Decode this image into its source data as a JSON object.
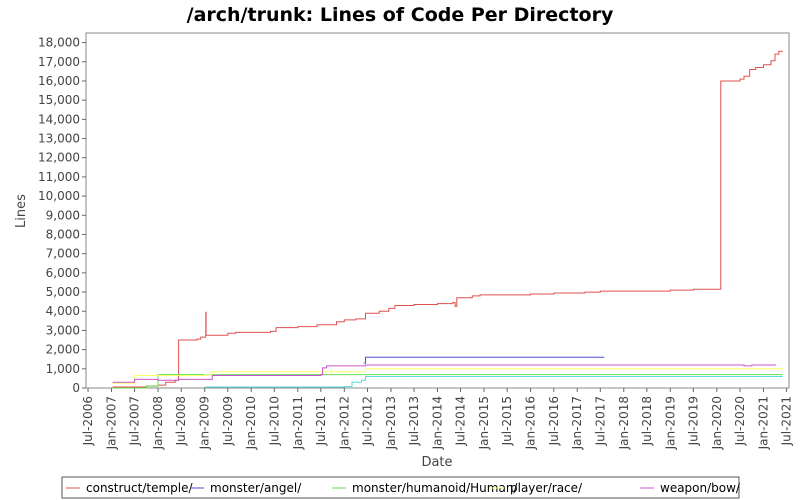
{
  "chart_data": {
    "type": "line",
    "title": "/arch/trunk: Lines of Code Per Directory",
    "xlabel": "Date",
    "ylabel": "Lines",
    "ylim": [
      0,
      18500
    ],
    "xlim": [
      "2006-06-15",
      "2021-07-20"
    ],
    "yticks": [
      0,
      1000,
      2000,
      3000,
      4000,
      5000,
      6000,
      7000,
      8000,
      9000,
      10000,
      11000,
      12000,
      13000,
      14000,
      15000,
      16000,
      17000,
      18000
    ],
    "ytick_labels": [
      "0",
      "1,000",
      "2,000",
      "3,000",
      "4,000",
      "5,000",
      "6,000",
      "7,000",
      "8,000",
      "9,000",
      "10,000",
      "11,000",
      "12,000",
      "13,000",
      "14,000",
      "15,000",
      "16,000",
      "17,000",
      "18,000"
    ],
    "xticks": [
      "2006-07-01",
      "2007-01-01",
      "2007-07-01",
      "2008-01-01",
      "2008-07-01",
      "2009-01-01",
      "2009-07-01",
      "2010-01-01",
      "2010-07-01",
      "2011-01-01",
      "2011-07-01",
      "2012-01-01",
      "2012-07-01",
      "2013-01-01",
      "2013-07-01",
      "2014-01-01",
      "2014-07-01",
      "2015-01-01",
      "2015-07-01",
      "2016-01-01",
      "2016-07-01",
      "2017-01-01",
      "2017-07-01",
      "2018-01-01",
      "2018-07-01",
      "2019-01-01",
      "2019-07-01",
      "2020-01-01",
      "2020-07-01",
      "2021-01-01",
      "2021-07-01"
    ],
    "xtick_labels": [
      "Jul-2006",
      "Jan-2007",
      "Jul-2007",
      "Jan-2008",
      "Jul-2008",
      "Jan-2009",
      "Jul-2009",
      "Jan-2010",
      "Jul-2010",
      "Jan-2011",
      "Jul-2011",
      "Jan-2012",
      "Jul-2012",
      "Jan-2013",
      "Jul-2013",
      "Jan-2014",
      "Jul-2014",
      "Jan-2015",
      "Jul-2015",
      "Jan-2016",
      "Jul-2016",
      "Jan-2017",
      "Jul-2017",
      "Jan-2018",
      "Jul-2018",
      "Jan-2019",
      "Jul-2019",
      "Jan-2020",
      "Jul-2020",
      "Jan-2021",
      "Jul-2021"
    ],
    "grid": false,
    "legend_position": "bottom",
    "series": [
      {
        "name": "construct/temple/",
        "color": "#e05050",
        "points": [
          [
            "2007-01-10",
            50
          ],
          [
            "2007-10-01",
            100
          ],
          [
            "2008-01-01",
            150
          ],
          [
            "2008-03-01",
            300
          ],
          [
            "2008-05-15",
            400
          ],
          [
            "2008-06-10",
            2500
          ],
          [
            "2008-11-01",
            2550
          ],
          [
            "2008-12-01",
            2650
          ],
          [
            "2009-01-08",
            2750
          ],
          [
            "2009-01-10",
            3950
          ],
          [
            "2009-01-12",
            2750
          ],
          [
            "2009-07-01",
            2850
          ],
          [
            "2009-09-01",
            2900
          ],
          [
            "2010-06-01",
            2950
          ],
          [
            "2010-07-15",
            3150
          ],
          [
            "2011-01-01",
            3200
          ],
          [
            "2011-06-01",
            3300
          ],
          [
            "2011-11-01",
            3450
          ],
          [
            "2012-01-01",
            3550
          ],
          [
            "2012-04-01",
            3600
          ],
          [
            "2012-06-15",
            3900
          ],
          [
            "2012-10-01",
            4000
          ],
          [
            "2012-12-15",
            4150
          ],
          [
            "2013-02-01",
            4300
          ],
          [
            "2013-07-01",
            4350
          ],
          [
            "2014-01-01",
            4400
          ],
          [
            "2014-05-01",
            4450
          ],
          [
            "2014-05-20",
            4250
          ],
          [
            "2014-06-01",
            4700
          ],
          [
            "2014-10-01",
            4800
          ],
          [
            "2014-12-01",
            4850
          ],
          [
            "2016-01-01",
            4900
          ],
          [
            "2016-07-01",
            4950
          ],
          [
            "2017-03-01",
            5000
          ],
          [
            "2017-07-01",
            5050
          ],
          [
            "2019-01-01",
            5100
          ],
          [
            "2019-07-01",
            5150
          ],
          [
            "2020-02-01",
            16000
          ],
          [
            "2020-07-01",
            16100
          ],
          [
            "2020-08-01",
            16250
          ],
          [
            "2020-09-15",
            16600
          ],
          [
            "2020-11-01",
            16700
          ],
          [
            "2021-01-01",
            16850
          ],
          [
            "2021-03-01",
            17050
          ],
          [
            "2021-04-01",
            17400
          ],
          [
            "2021-05-01",
            17550
          ],
          [
            "2021-06-01",
            17550
          ]
        ]
      },
      {
        "name": "monster/angel/",
        "color": "#4d4dcc",
        "points": [
          [
            "2012-06-01",
            1300
          ],
          [
            "2012-06-15",
            1600
          ],
          [
            "2017-08-01",
            1600
          ]
        ]
      },
      {
        "name": "monster/humanoid/Human/",
        "color": "#66dd55",
        "points": [
          [
            "2007-01-10",
            0
          ],
          [
            "2007-10-01",
            100
          ],
          [
            "2008-01-01",
            700
          ],
          [
            "2021-06-01",
            700
          ]
        ]
      },
      {
        "name": "player/race/",
        "color": "#ffff66",
        "points": [
          [
            "2007-01-10",
            250
          ],
          [
            "2007-07-01",
            650
          ],
          [
            "2009-01-01",
            700
          ],
          [
            "2009-03-01",
            850
          ],
          [
            "2012-03-01",
            850
          ],
          [
            "2012-06-15",
            1000
          ],
          [
            "2021-06-01",
            1000
          ]
        ]
      },
      {
        "name": "weapon/bow/",
        "color": "#cc55cc",
        "points": [
          [
            "2007-01-10",
            300
          ],
          [
            "2007-07-01",
            450
          ],
          [
            "2008-01-01",
            400
          ],
          [
            "2008-06-10",
            450
          ],
          [
            "2009-03-01",
            650
          ],
          [
            "2011-07-01",
            700
          ],
          [
            "2011-07-15",
            1050
          ],
          [
            "2011-08-15",
            1150
          ],
          [
            "2012-06-15",
            1200
          ],
          [
            "2020-07-15",
            1200
          ],
          [
            "2020-08-01",
            1150
          ],
          [
            "2020-10-01",
            1200
          ],
          [
            "2021-04-01",
            1250
          ]
        ]
      },
      {
        "name": "",
        "color": "#55dddd",
        "points": [
          [
            "2009-01-01",
            50
          ],
          [
            "2012-01-01",
            80
          ],
          [
            "2012-03-01",
            300
          ],
          [
            "2012-05-15",
            400
          ],
          [
            "2012-06-15",
            600
          ],
          [
            "2021-06-01",
            600
          ]
        ]
      }
    ]
  }
}
